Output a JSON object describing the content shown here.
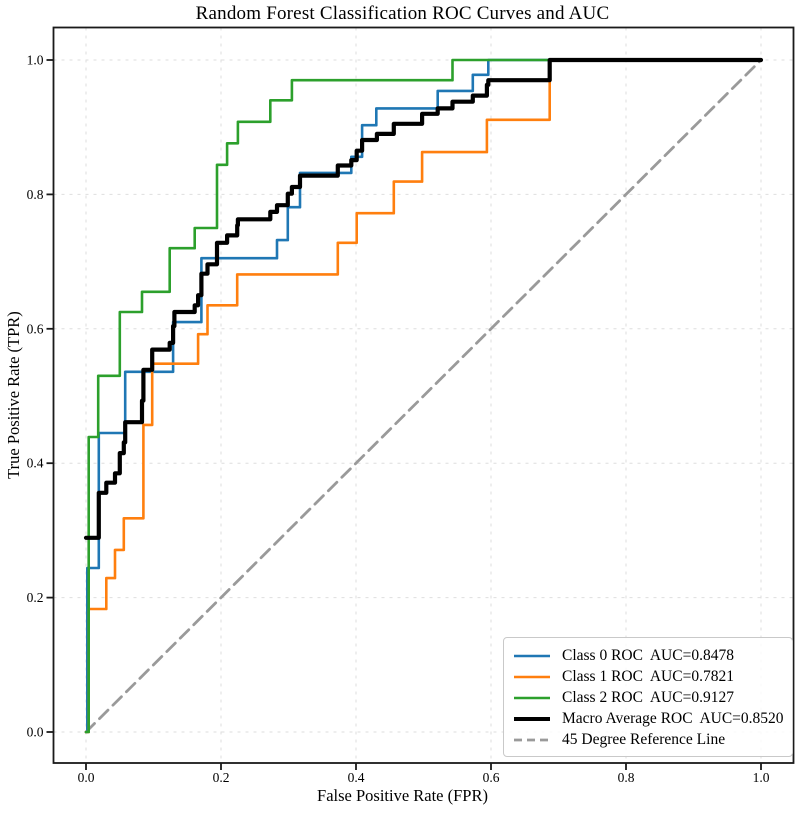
{
  "title": "Random Forest Classification ROC Curves and AUC",
  "chart_data": {
    "type": "line",
    "title": "Random Forest Classification ROC Curves and AUC",
    "xlabel": "False Positive Rate (FPR)",
    "ylabel": "True Positive Rate (TPR)",
    "xlim": [
      -0.047,
      1.047
    ],
    "ylim": [
      -0.054,
      1.047
    ],
    "grid": true,
    "gridline_color": "#dedede",
    "legend_position": "lower right",
    "x_tick_labels": [
      "0.0",
      "0.2",
      "0.4",
      "0.6",
      "0.8",
      "1.0"
    ],
    "y_tick_labels": [
      "0.0",
      "0.2",
      "0.4",
      "0.6",
      "0.8",
      "1.0"
    ],
    "series": [
      {
        "label": "Class 0 ROC  AUC=0.8478",
        "auc": 0.8478,
        "color": "#1f77b4",
        "line_width": 2.6,
        "line_style": "solid",
        "render": "line",
        "points": [
          [
            0,
            0
          ],
          [
            0.002,
            0
          ],
          [
            0.002,
            0.244
          ],
          [
            0.019,
            0.244
          ],
          [
            0.019,
            0.445
          ],
          [
            0.058,
            0.445
          ],
          [
            0.058,
            0.536
          ],
          [
            0.129,
            0.536
          ],
          [
            0.129,
            0.61
          ],
          [
            0.171,
            0.61
          ],
          [
            0.171,
            0.705
          ],
          [
            0.283,
            0.705
          ],
          [
            0.283,
            0.732
          ],
          [
            0.299,
            0.732
          ],
          [
            0.299,
            0.781
          ],
          [
            0.317,
            0.781
          ],
          [
            0.317,
            0.832
          ],
          [
            0.393,
            0.832
          ],
          [
            0.393,
            0.856
          ],
          [
            0.409,
            0.856
          ],
          [
            0.409,
            0.903
          ],
          [
            0.43,
            0.903
          ],
          [
            0.43,
            0.928
          ],
          [
            0.521,
            0.928
          ],
          [
            0.521,
            0.954
          ],
          [
            0.573,
            0.954
          ],
          [
            0.573,
            0.978
          ],
          [
            0.596,
            0.978
          ],
          [
            0.596,
            1.0
          ],
          [
            1.0,
            1.0
          ]
        ]
      },
      {
        "label": "Class 1 ROC  AUC=0.7821",
        "auc": 0.7821,
        "color": "#ff7f0e",
        "line_width": 2.6,
        "line_style": "solid",
        "render": "line",
        "points": [
          [
            0,
            0
          ],
          [
            0.004,
            0
          ],
          [
            0.004,
            0.183
          ],
          [
            0.03,
            0.183
          ],
          [
            0.03,
            0.229
          ],
          [
            0.043,
            0.229
          ],
          [
            0.043,
            0.271
          ],
          [
            0.056,
            0.271
          ],
          [
            0.056,
            0.318
          ],
          [
            0.085,
            0.318
          ],
          [
            0.085,
            0.457
          ],
          [
            0.098,
            0.457
          ],
          [
            0.098,
            0.548
          ],
          [
            0.166,
            0.548
          ],
          [
            0.166,
            0.592
          ],
          [
            0.18,
            0.592
          ],
          [
            0.18,
            0.635
          ],
          [
            0.224,
            0.635
          ],
          [
            0.224,
            0.681
          ],
          [
            0.373,
            0.681
          ],
          [
            0.373,
            0.728
          ],
          [
            0.401,
            0.728
          ],
          [
            0.401,
            0.772
          ],
          [
            0.456,
            0.772
          ],
          [
            0.456,
            0.819
          ],
          [
            0.498,
            0.819
          ],
          [
            0.498,
            0.863
          ],
          [
            0.594,
            0.863
          ],
          [
            0.594,
            0.911
          ],
          [
            0.687,
            0.911
          ],
          [
            0.687,
            1.0
          ],
          [
            1.0,
            1.0
          ]
        ]
      },
      {
        "label": "Class 2 ROC  AUC=0.9127",
        "auc": 0.9127,
        "color": "#2ca02c",
        "line_width": 2.6,
        "line_style": "solid",
        "render": "line",
        "points": [
          [
            0,
            0
          ],
          [
            0.004,
            0
          ],
          [
            0.004,
            0.439
          ],
          [
            0.018,
            0.439
          ],
          [
            0.018,
            0.53
          ],
          [
            0.05,
            0.53
          ],
          [
            0.05,
            0.625
          ],
          [
            0.083,
            0.625
          ],
          [
            0.083,
            0.655
          ],
          [
            0.124,
            0.655
          ],
          [
            0.124,
            0.72
          ],
          [
            0.161,
            0.72
          ],
          [
            0.161,
            0.75
          ],
          [
            0.194,
            0.75
          ],
          [
            0.194,
            0.844
          ],
          [
            0.209,
            0.844
          ],
          [
            0.209,
            0.876
          ],
          [
            0.225,
            0.876
          ],
          [
            0.225,
            0.908
          ],
          [
            0.273,
            0.908
          ],
          [
            0.273,
            0.94
          ],
          [
            0.305,
            0.94
          ],
          [
            0.305,
            0.97
          ],
          [
            0.543,
            0.97
          ],
          [
            0.543,
            1.0
          ],
          [
            1.0,
            1.0
          ]
        ]
      },
      {
        "label": "Macro Average ROC  AUC=0.8520",
        "auc": 0.852,
        "color": "#000000",
        "line_width": 4.2,
        "line_style": "solid",
        "render": "steps",
        "points": [
          [
            0,
            0.289
          ],
          [
            0.019,
            0.356
          ],
          [
            0.03,
            0.371
          ],
          [
            0.043,
            0.385
          ],
          [
            0.05,
            0.415
          ],
          [
            0.056,
            0.431
          ],
          [
            0.058,
            0.461
          ],
          [
            0.083,
            0.493
          ],
          [
            0.085,
            0.539
          ],
          [
            0.098,
            0.569
          ],
          [
            0.124,
            0.579
          ],
          [
            0.129,
            0.604
          ],
          [
            0.131,
            0.625
          ],
          [
            0.161,
            0.635
          ],
          [
            0.166,
            0.65
          ],
          [
            0.171,
            0.682
          ],
          [
            0.18,
            0.696
          ],
          [
            0.194,
            0.728
          ],
          [
            0.209,
            0.739
          ],
          [
            0.224,
            0.754
          ],
          [
            0.225,
            0.763
          ],
          [
            0.273,
            0.774
          ],
          [
            0.283,
            0.784
          ],
          [
            0.299,
            0.801
          ],
          [
            0.305,
            0.811
          ],
          [
            0.317,
            0.828
          ],
          [
            0.373,
            0.843
          ],
          [
            0.393,
            0.851
          ],
          [
            0.401,
            0.865
          ],
          [
            0.409,
            0.881
          ],
          [
            0.431,
            0.89
          ],
          [
            0.456,
            0.905
          ],
          [
            0.498,
            0.92
          ],
          [
            0.521,
            0.928
          ],
          [
            0.543,
            0.938
          ],
          [
            0.573,
            0.947
          ],
          [
            0.594,
            0.963
          ],
          [
            0.596,
            0.97
          ],
          [
            0.687,
            1.0
          ],
          [
            1.0,
            1.0
          ]
        ]
      },
      {
        "label": "45 Degree Reference Line",
        "color": "#9a9a9a",
        "line_width": 2.8,
        "line_style": "dashed",
        "render": "line",
        "points": [
          [
            0,
            0
          ],
          [
            1.0,
            1.0
          ]
        ]
      }
    ]
  }
}
